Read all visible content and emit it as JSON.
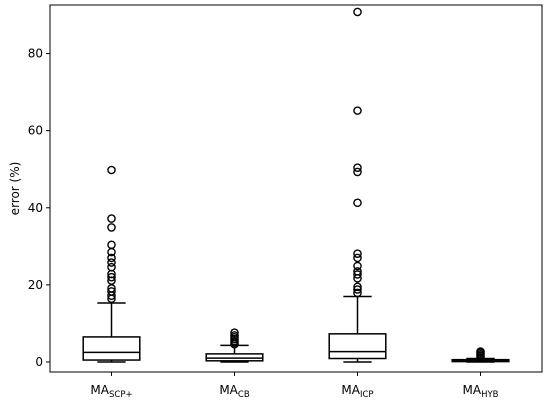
{
  "chart_data": {
    "type": "box",
    "ylabel": "error (%)",
    "xlabel": "",
    "title": "",
    "ylim": [
      -2.6,
      92.6
    ],
    "yticks": [
      0,
      20,
      40,
      60,
      80
    ],
    "grid": false,
    "categories": [
      {
        "base": "MA",
        "sub": "SCP+"
      },
      {
        "base": "MA",
        "sub": "CB"
      },
      {
        "base": "MA",
        "sub": "ICP"
      },
      {
        "base": "MA",
        "sub": "HYB"
      }
    ],
    "boxes": [
      {
        "whisker_low": 0.0,
        "q1": 0.5,
        "median": 2.5,
        "q3": 6.5,
        "whisker_high": 15.3,
        "outliers": [
          16.4,
          17.2,
          18.3,
          19.1,
          21.1,
          22.0,
          22.8,
          24.6,
          25.8,
          27.0,
          28.5,
          30.4,
          34.9,
          37.2,
          49.8
        ]
      },
      {
        "whisker_low": 0.0,
        "q1": 0.3,
        "median": 1.0,
        "q3": 2.1,
        "whisker_high": 4.3,
        "outliers": [
          4.6,
          5.0,
          5.4,
          5.9,
          6.4,
          6.9,
          7.6
        ]
      },
      {
        "whisker_low": 0.0,
        "q1": 0.9,
        "median": 2.7,
        "q3": 7.3,
        "whisker_high": 17.0,
        "outliers": [
          17.9,
          18.8,
          19.5,
          21.7,
          22.7,
          23.5,
          24.9,
          27.0,
          28.1,
          41.3,
          49.3,
          50.4,
          65.2,
          90.8
        ]
      },
      {
        "whisker_low": 0.0,
        "q1": 0.1,
        "median": 0.3,
        "q3": 0.6,
        "whisker_high": 0.9,
        "outliers": [
          1.2,
          1.6,
          2.0,
          2.4,
          2.7
        ]
      }
    ]
  }
}
